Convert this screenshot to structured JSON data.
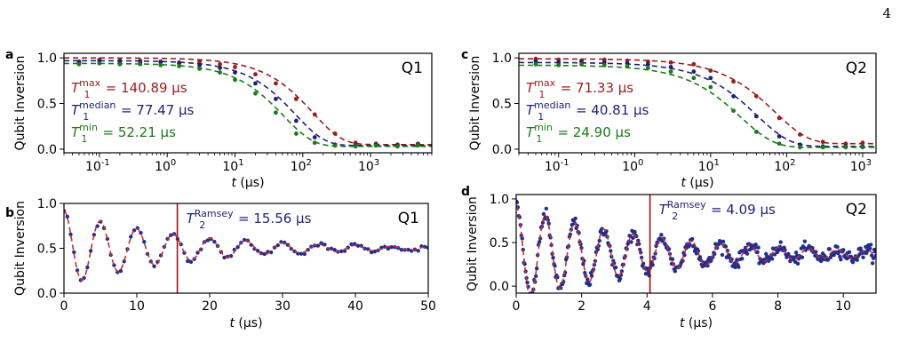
{
  "page_number": "4",
  "colors": {
    "t1_max": "#9b1c1c",
    "t1_median": "#1f1f7a",
    "t1_min": "#1b7a1b",
    "ramsey_points": "#232e8f",
    "ramsey_fit": "#c0302e",
    "vline": "#9b1111"
  },
  "chart_data": [
    {
      "panel": "a",
      "type": "scatter",
      "qubit_label": "Q1",
      "xscale": "log",
      "xlabel": "t (μs)",
      "ylabel": "Qubit Inversion",
      "xlim": [
        0.03,
        8000
      ],
      "ylim": [
        -0.04,
        1.05
      ],
      "yticks": [
        "0.0",
        "0.5",
        "1.0"
      ],
      "xticks": [
        {
          "exp": "-1",
          "v": 0.1
        },
        {
          "exp": "0",
          "v": 1
        },
        {
          "exp": "1",
          "v": 10
        },
        {
          "exp": "2",
          "v": 100
        },
        {
          "exp": "3",
          "v": 1000
        }
      ],
      "grid": false,
      "annotations": [
        {
          "base": "T",
          "sub": "1",
          "sup": "max",
          "rest": " = 140.89 μs",
          "color": "#9b1c1c"
        },
        {
          "base": "T",
          "sub": "1",
          "sup": "median",
          "rest": " = 77.47 μs",
          "color": "#1f1f7a"
        },
        {
          "base": "T",
          "sub": "1",
          "sup": "min",
          "rest": " = 52.21 μs",
          "color": "#1b7a1b"
        }
      ],
      "series": [
        {
          "T1": 140.89,
          "amp": 0.95,
          "offset": 0.05,
          "color": "#9b1c1c",
          "x": [
            0.05,
            0.1,
            0.2,
            0.4,
            0.8,
            1.5,
            3,
            6,
            10,
            20,
            40,
            80,
            150,
            300,
            600,
            1200,
            2500,
            5000
          ],
          "y": [
            0.96,
            0.98,
            0.97,
            0.97,
            0.96,
            0.95,
            0.96,
            0.93,
            0.9,
            0.82,
            0.72,
            0.55,
            0.38,
            0.17,
            0.07,
            0.06,
            0.05,
            0.06
          ]
        },
        {
          "T1": 77.47,
          "amp": 0.93,
          "offset": 0.04,
          "color": "#1f1f7a",
          "x": [
            0.05,
            0.1,
            0.2,
            0.4,
            0.8,
            1.5,
            3,
            6,
            10,
            20,
            40,
            80,
            150,
            300,
            600,
            1200,
            2500,
            5000
          ],
          "y": [
            0.95,
            0.96,
            0.96,
            0.95,
            0.95,
            0.94,
            0.92,
            0.89,
            0.84,
            0.72,
            0.55,
            0.31,
            0.13,
            0.05,
            0.04,
            0.05,
            0.04,
            0.05
          ]
        },
        {
          "T1": 52.21,
          "amp": 0.91,
          "offset": 0.03,
          "color": "#1b7a1b",
          "x": [
            0.05,
            0.1,
            0.2,
            0.4,
            0.8,
            1.5,
            3,
            6,
            10,
            20,
            40,
            80,
            150,
            300,
            600,
            1200,
            2500,
            5000
          ],
          "y": [
            0.93,
            0.94,
            0.93,
            0.93,
            0.92,
            0.91,
            0.88,
            0.84,
            0.76,
            0.61,
            0.4,
            0.17,
            0.07,
            0.04,
            0.03,
            0.04,
            0.03,
            0.04
          ]
        }
      ]
    },
    {
      "panel": "c",
      "type": "scatter",
      "qubit_label": "Q2",
      "xscale": "log",
      "xlabel": "t (μs)",
      "ylabel": "Qubit Inversion",
      "xlim": [
        0.03,
        1500
      ],
      "ylim": [
        -0.04,
        1.05
      ],
      "yticks": [
        "0.0",
        "0.5",
        "1.0"
      ],
      "xticks": [
        {
          "exp": "-1",
          "v": 0.1
        },
        {
          "exp": "0",
          "v": 1
        },
        {
          "exp": "1",
          "v": 10
        },
        {
          "exp": "2",
          "v": 100
        },
        {
          "exp": "3",
          "v": 1000
        }
      ],
      "grid": false,
      "annotations": [
        {
          "base": "T",
          "sub": "1",
          "sup": "max",
          "rest": " = 71.33 μs",
          "color": "#9b1c1c"
        },
        {
          "base": "T",
          "sub": "1",
          "sup": "median",
          "rest": " = 40.81 μs",
          "color": "#1f1f7a"
        },
        {
          "base": "T",
          "sub": "1",
          "sup": "min",
          "rest": " = 24.90 μs",
          "color": "#1b7a1b"
        }
      ],
      "series": [
        {
          "T1": 71.33,
          "amp": 0.93,
          "offset": 0.06,
          "color": "#9b1c1c",
          "x": [
            0.05,
            0.1,
            0.2,
            0.4,
            0.8,
            1.5,
            3,
            6,
            10,
            20,
            40,
            80,
            150,
            300,
            600,
            1000
          ],
          "y": [
            0.99,
            0.98,
            0.97,
            0.98,
            0.97,
            0.96,
            0.95,
            0.93,
            0.86,
            0.74,
            0.58,
            0.34,
            0.16,
            0.08,
            0.06,
            0.07
          ]
        },
        {
          "T1": 40.81,
          "amp": 0.92,
          "offset": 0.03,
          "color": "#1f1f7a",
          "x": [
            0.05,
            0.1,
            0.2,
            0.4,
            0.8,
            1.5,
            3,
            6,
            10,
            20,
            40,
            80,
            150,
            300,
            600,
            1000
          ],
          "y": [
            0.96,
            0.95,
            0.96,
            0.95,
            0.94,
            0.93,
            0.9,
            0.85,
            0.78,
            0.58,
            0.36,
            0.14,
            0.05,
            0.03,
            0.03,
            0.03
          ]
        },
        {
          "T1": 24.9,
          "amp": 0.9,
          "offset": 0.02,
          "color": "#1b7a1b",
          "x": [
            0.05,
            0.1,
            0.2,
            0.4,
            0.8,
            1.5,
            3,
            6,
            10,
            20,
            40,
            80,
            150,
            300,
            600,
            1000
          ],
          "y": [
            0.93,
            0.92,
            0.93,
            0.92,
            0.91,
            0.89,
            0.85,
            0.78,
            0.68,
            0.42,
            0.19,
            0.06,
            0.02,
            0.02,
            0.02,
            0.02
          ]
        }
      ]
    },
    {
      "panel": "b",
      "type": "scatter",
      "qubit_label": "Q1",
      "xscale": "linear",
      "xlabel": "t (μs)",
      "ylabel": "Qubit Inversion",
      "xlim": [
        0,
        50
      ],
      "ylim": [
        0,
        1.0
      ],
      "yticks": [
        "0.0",
        "0.5",
        "1.0"
      ],
      "yticks_v": [
        0,
        0.5,
        1.0
      ],
      "xticks": [
        "0",
        "10",
        "20",
        "30",
        "40",
        "50"
      ],
      "xticks_v": [
        0,
        10,
        20,
        30,
        40,
        50
      ],
      "grid": false,
      "vline_x": 15.56,
      "annotation": {
        "base": "T",
        "sub": "2",
        "sup": "Ramsey",
        "rest": " = 15.56 μs",
        "color": "#1f1f7a"
      },
      "fit": {
        "T2": 15.56,
        "mean": 0.5,
        "amp": 0.42,
        "freq_mhz": 0.2,
        "phase": 0.0
      },
      "n_points": 110
    },
    {
      "panel": "d",
      "type": "scatter",
      "qubit_label": "Q2",
      "xscale": "linear",
      "xlabel": "t (μs)",
      "ylabel": "Qubit Inversion",
      "xlim": [
        0,
        11
      ],
      "ylim": [
        -0.08,
        1.05
      ],
      "yticks": [
        "0.0",
        "0.5",
        "1.0"
      ],
      "yticks_v": [
        0,
        0.5,
        1.0
      ],
      "xticks": [
        "0",
        "2",
        "4",
        "6",
        "8",
        "10"
      ],
      "xticks_v": [
        0,
        2,
        4,
        6,
        8,
        10
      ],
      "grid": false,
      "vline_x": 4.09,
      "annotation": {
        "base": "T",
        "sub": "2",
        "sup": "Ramsey",
        "rest": " = 4.09 μs",
        "color": "#1f1f7a"
      },
      "fit": {
        "T2": 4.09,
        "mean": 0.37,
        "amp": 0.55,
        "freq_mhz": 1.12,
        "phase": 0.0
      },
      "n_points": 420
    }
  ]
}
